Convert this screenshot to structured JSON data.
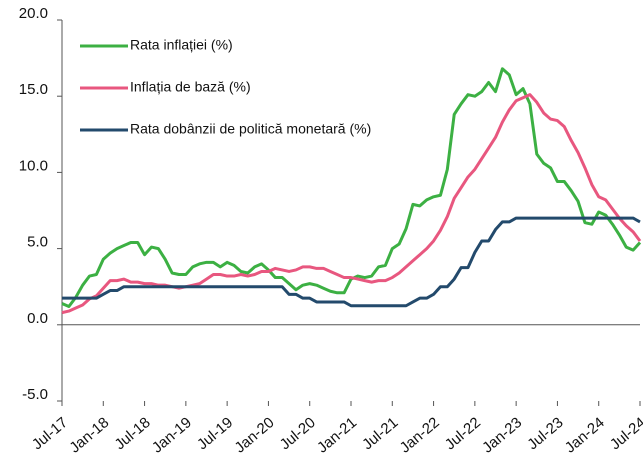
{
  "chart_data": {
    "type": "line",
    "categories": [
      "Jul-17",
      null,
      null,
      null,
      null,
      null,
      "Jan-18",
      null,
      null,
      null,
      null,
      null,
      "Jul-18",
      null,
      null,
      null,
      null,
      null,
      "Jan-19",
      null,
      null,
      null,
      null,
      null,
      "Jul-19",
      null,
      null,
      null,
      null,
      null,
      "Jan-20",
      null,
      null,
      null,
      null,
      null,
      "Jul-20",
      null,
      null,
      null,
      null,
      null,
      "Jan-21",
      null,
      null,
      null,
      null,
      null,
      "Jul-21",
      null,
      null,
      null,
      null,
      null,
      "Jan-22",
      null,
      null,
      null,
      null,
      null,
      "Jul-22",
      null,
      null,
      null,
      null,
      null,
      "Jan-23",
      null,
      null,
      null,
      null,
      null,
      "Jul-23",
      null,
      null,
      null,
      null,
      null,
      "Jan-24",
      null,
      null,
      null,
      null,
      null,
      "Jul-24"
    ],
    "series": [
      {
        "name": "Rata inflației (%)",
        "color": "#3cb043",
        "values": [
          1.4,
          1.2,
          1.8,
          2.6,
          3.2,
          3.3,
          4.3,
          4.7,
          5.0,
          5.2,
          5.4,
          5.4,
          4.6,
          5.1,
          5.0,
          4.3,
          3.4,
          3.3,
          3.3,
          3.8,
          4.0,
          4.1,
          4.1,
          3.8,
          4.1,
          3.9,
          3.5,
          3.4,
          3.8,
          4.0,
          3.6,
          3.1,
          3.1,
          2.7,
          2.3,
          2.6,
          2.7,
          2.6,
          2.4,
          2.2,
          2.1,
          2.1,
          3.0,
          3.2,
          3.1,
          3.2,
          3.8,
          3.9,
          5.0,
          5.3,
          6.3,
          7.9,
          7.8,
          8.2,
          8.4,
          8.5,
          10.2,
          13.8,
          14.5,
          15.1,
          15.0,
          15.3,
          15.9,
          15.3,
          16.8,
          16.4,
          15.1,
          15.5,
          14.5,
          11.2,
          10.6,
          10.3,
          9.4,
          9.4,
          8.8,
          8.1,
          6.7,
          6.6,
          7.4,
          7.2,
          6.6,
          5.9,
          5.1,
          4.9,
          5.4
        ]
      },
      {
        "name": "Inflația de bază (%)",
        "color": "#e8577f",
        "values": [
          0.8,
          0.9,
          1.1,
          1.3,
          1.7,
          1.9,
          2.4,
          2.9,
          2.9,
          3.0,
          2.8,
          2.8,
          2.7,
          2.7,
          2.6,
          2.6,
          2.5,
          2.4,
          2.5,
          2.6,
          2.7,
          3.0,
          3.3,
          3.3,
          3.2,
          3.2,
          3.3,
          3.2,
          3.3,
          3.5,
          3.5,
          3.7,
          3.6,
          3.5,
          3.6,
          3.8,
          3.8,
          3.7,
          3.7,
          3.5,
          3.3,
          3.1,
          3.1,
          3.0,
          2.9,
          2.8,
          2.9,
          2.9,
          3.1,
          3.4,
          3.8,
          4.2,
          4.6,
          5.0,
          5.5,
          6.2,
          7.1,
          8.3,
          9.0,
          9.7,
          10.2,
          10.9,
          11.6,
          12.3,
          13.3,
          14.1,
          14.7,
          14.9,
          15.1,
          14.6,
          13.9,
          13.5,
          13.4,
          13.0,
          12.1,
          11.3,
          10.3,
          9.2,
          8.4,
          8.2,
          7.6,
          7.0,
          6.5,
          6.1,
          5.5
        ]
      },
      {
        "name": "Rata dobânzii de politică monetară (%)",
        "color": "#234a6c",
        "values": [
          1.75,
          1.75,
          1.75,
          1.75,
          1.75,
          1.75,
          2.0,
          2.25,
          2.25,
          2.5,
          2.5,
          2.5,
          2.5,
          2.5,
          2.5,
          2.5,
          2.5,
          2.5,
          2.5,
          2.5,
          2.5,
          2.5,
          2.5,
          2.5,
          2.5,
          2.5,
          2.5,
          2.5,
          2.5,
          2.5,
          2.5,
          2.5,
          2.5,
          2.0,
          2.0,
          1.75,
          1.75,
          1.5,
          1.5,
          1.5,
          1.5,
          1.5,
          1.25,
          1.25,
          1.25,
          1.25,
          1.25,
          1.25,
          1.25,
          1.25,
          1.25,
          1.5,
          1.75,
          1.75,
          2.0,
          2.5,
          2.5,
          3.0,
          3.75,
          3.75,
          4.75,
          5.5,
          5.5,
          6.25,
          6.75,
          6.75,
          7.0,
          7.0,
          7.0,
          7.0,
          7.0,
          7.0,
          7.0,
          7.0,
          7.0,
          7.0,
          7.0,
          7.0,
          7.0,
          7.0,
          7.0,
          7.0,
          7.0,
          7.0,
          6.75
        ]
      }
    ],
    "ylim": [
      -5,
      20
    ],
    "yticks": [
      {
        "value": -5,
        "label": "-5.0"
      },
      {
        "value": 0,
        "label": "0.0"
      },
      {
        "value": 5,
        "label": "5.0"
      },
      {
        "value": 10,
        "label": "10.0"
      },
      {
        "value": 15,
        "label": "15.0"
      },
      {
        "value": 20,
        "label": "20.0"
      }
    ],
    "grid": false,
    "legend": "top-left"
  }
}
